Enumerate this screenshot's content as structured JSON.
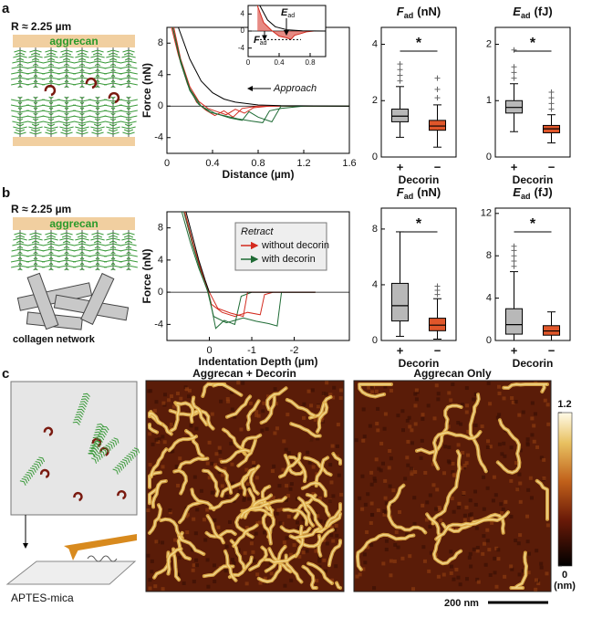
{
  "panel_labels": [
    "a",
    "b",
    "c"
  ],
  "schematic_a": {
    "radius": "R ≈ 2.25 µm",
    "top": "aggrecan"
  },
  "schematic_b": {
    "radius": "R ≈ 2.25 µm",
    "top": "aggrecan",
    "bottom": "collagen network"
  },
  "schematic_c": {
    "substrate": "APTES-mica"
  },
  "images": [
    {
      "title": "Aggrecan + Decorin"
    },
    {
      "title": "Aggrecan Only"
    }
  ],
  "colorbar": {
    "lim": [
      0,
      1.2
    ],
    "ticks": [
      0,
      1.2
    ],
    "unit": "(nm)"
  },
  "scale_bar": "200 nm",
  "chart_data": [
    {
      "type": "line",
      "xlabel": "Distance (µm)",
      "ylabel": "Force (nN)",
      "xlim": [
        0,
        1.6
      ],
      "xticks": [
        0,
        0.4,
        0.8,
        1.2,
        1.6
      ],
      "ylim": [
        -6,
        10
      ],
      "yticks": [
        -4,
        0,
        4,
        8
      ],
      "annotation": "Approach",
      "series": [
        {
          "color": "#d42a1e",
          "x": [
            0.06,
            0.12,
            0.2,
            0.28,
            0.36,
            0.44,
            0.52,
            0.6,
            0.68,
            0.76,
            0.9,
            1.6
          ],
          "values": [
            10,
            6,
            2.5,
            0.6,
            -0.3,
            -0.7,
            -1.1,
            -0.4,
            -0.9,
            -0.2,
            0,
            0
          ]
        },
        {
          "color": "#d42a1e",
          "x": [
            0.04,
            0.1,
            0.18,
            0.26,
            0.34,
            0.42,
            0.5,
            0.58,
            0.66,
            0.8,
            1.6
          ],
          "values": [
            10,
            6.5,
            2.8,
            0.5,
            -0.5,
            -1.2,
            -0.6,
            -1.4,
            -0.3,
            0,
            0
          ]
        },
        {
          "color": "#1f6b35",
          "x": [
            0.05,
            0.12,
            0.2,
            0.28,
            0.38,
            0.5,
            0.62,
            0.74,
            0.84,
            0.9,
            1.0,
            1.2,
            1.6
          ],
          "values": [
            10,
            5.5,
            2,
            0.2,
            -0.8,
            -1.2,
            -1.6,
            -1.9,
            -2.1,
            -0.6,
            -0.3,
            0,
            0
          ]
        },
        {
          "color": "#1f6b35",
          "x": [
            0.05,
            0.12,
            0.2,
            0.3,
            0.42,
            0.55,
            0.66,
            0.72,
            0.8,
            0.92,
            1.0,
            1.6
          ],
          "values": [
            10,
            5.8,
            2.2,
            0,
            -0.9,
            -1.5,
            -1.8,
            -0.7,
            -1.4,
            -2.0,
            0,
            0
          ]
        },
        {
          "color": "#000000",
          "x": [
            0.1,
            0.15,
            0.2,
            0.3,
            0.4,
            0.5,
            0.6,
            0.8,
            1.0,
            1.6
          ],
          "values": [
            10,
            8,
            6,
            3.2,
            1.7,
            0.9,
            0.5,
            0.15,
            0.05,
            0
          ]
        }
      ]
    },
    {
      "type": "line",
      "xlim": [
        0,
        1.0
      ],
      "xticks": [
        0,
        0.4,
        0.8
      ],
      "ylim": [
        -6,
        6
      ],
      "yticks": [
        -4,
        0,
        4
      ],
      "annotations": {
        "E": "E",
        "E_sub": "ad",
        "F": "F",
        "F_sub": "ad"
      },
      "series": [
        {
          "color": "#d42a1e",
          "area": true,
          "x": [
            0.12,
            0.2,
            0.3,
            0.4,
            0.5,
            0.55,
            0.6,
            0.68,
            0.75,
            0.85
          ],
          "values": [
            6,
            2,
            0.2,
            -1.2,
            -1.6,
            -2,
            -1,
            -0.6,
            -0.2,
            0
          ]
        },
        {
          "color": "#000000",
          "x": [
            0.15,
            0.25,
            0.35,
            0.5,
            0.7,
            1.0
          ],
          "values": [
            6,
            2.6,
            1,
            0.3,
            0.05,
            0
          ]
        }
      ]
    },
    {
      "type": "box",
      "title": "F",
      "title_sub": "ad",
      "title_unit": "(nN)",
      "xlabel": "Decorin",
      "categories": [
        "+",
        "−"
      ],
      "annotation": "*",
      "ylim": [
        0,
        4.6
      ],
      "yticks": [
        0,
        2,
        4
      ],
      "boxes": [
        {
          "color": "#b8b8b8",
          "whisker_low": 0.7,
          "q1": 1.25,
          "median": 1.45,
          "q3": 1.7,
          "whisker_high": 2.5,
          "outliers": [
            2.7,
            2.9,
            3.1,
            3.3
          ]
        },
        {
          "color": "#e0562a",
          "whisker_low": 0.35,
          "q1": 0.95,
          "median": 1.1,
          "q3": 1.3,
          "whisker_high": 1.85,
          "outliers": [
            2.1,
            2.4,
            2.8
          ]
        }
      ]
    },
    {
      "type": "box",
      "title": "E",
      "title_sub": "ad",
      "title_unit": "(fJ)",
      "xlabel": "Decorin",
      "categories": [
        "+",
        "−"
      ],
      "annotation": "*",
      "ylim": [
        0,
        2.3
      ],
      "yticks": [
        0,
        1,
        2
      ],
      "boxes": [
        {
          "color": "#b8b8b8",
          "whisker_low": 0.45,
          "q1": 0.78,
          "median": 0.88,
          "q3": 1.0,
          "whisker_high": 1.3,
          "outliers": [
            1.4,
            1.5,
            1.6,
            1.9
          ]
        },
        {
          "color": "#e0562a",
          "whisker_low": 0.25,
          "q1": 0.43,
          "median": 0.5,
          "q3": 0.56,
          "whisker_high": 0.75,
          "outliers": [
            0.85,
            0.95,
            1.05,
            1.15
          ]
        }
      ]
    },
    {
      "type": "line",
      "xlabel": "Indentation Depth (µm)",
      "ylabel": "Force (nN)",
      "xlim": [
        1,
        -3.3
      ],
      "xticks": [
        0,
        -1,
        -2
      ],
      "ylim": [
        -6,
        10
      ],
      "yticks": [
        -4,
        0,
        4,
        8
      ],
      "legend": {
        "title": "Retract"
      },
      "series": [
        {
          "name": "without decorin",
          "color": "#d42a1e",
          "x": [
            0.6,
            0.4,
            0.2,
            0.05,
            -0.05,
            -0.3,
            -0.6,
            -0.9,
            -1.2,
            -1.3,
            -1.5,
            -2.5
          ],
          "values": [
            10,
            6,
            3,
            0.5,
            -1.5,
            -2.5,
            -3,
            -2.5,
            -2.8,
            -0.3,
            0,
            0
          ]
        },
        {
          "name": "with decorin",
          "color": "#1f6b35",
          "x": [
            0.65,
            0.45,
            0.25,
            0.05,
            -0.1,
            -0.4,
            -0.8,
            -1.1,
            -1.4,
            -1.6,
            -1.7,
            -2.5
          ],
          "values": [
            10,
            6.2,
            3,
            0.3,
            -3,
            -3.8,
            -3.2,
            -3.6,
            -3.9,
            -4.2,
            0,
            0
          ]
        },
        {
          "color": "#1f6b35",
          "x": [
            0.6,
            0.4,
            0.2,
            0,
            -0.15,
            -0.35,
            -0.6,
            -0.75,
            -1.0,
            -2.5
          ],
          "values": [
            10,
            6,
            2.5,
            -0.5,
            -4.5,
            -3.5,
            -4,
            -0.5,
            0,
            0
          ]
        },
        {
          "color": "#d42a1e",
          "x": [
            0.58,
            0.38,
            0.18,
            0,
            -0.2,
            -0.5,
            -0.8,
            -0.9,
            -2.5
          ],
          "values": [
            10,
            6,
            2.5,
            0,
            -2,
            -2.6,
            -3,
            0,
            0
          ]
        },
        {
          "color": "#000000",
          "x": [
            0.55,
            0.4,
            0.25,
            0.1,
            0,
            -0.3,
            -2.5
          ],
          "values": [
            10,
            7,
            4,
            1.5,
            0,
            0,
            0
          ]
        }
      ]
    },
    {
      "type": "box",
      "title": "F",
      "title_sub": "ad",
      "title_unit": "(nN)",
      "xlabel": "Decorin",
      "categories": [
        "+",
        "−"
      ],
      "annotation": "*",
      "ylim": [
        0,
        9.5
      ],
      "yticks": [
        0,
        4,
        8
      ],
      "boxes": [
        {
          "color": "#b8b8b8",
          "whisker_low": 0.3,
          "q1": 1.4,
          "median": 2.5,
          "q3": 4.1,
          "whisker_high": 7.8,
          "outliers": []
        },
        {
          "color": "#e0562a",
          "whisker_low": 0.1,
          "q1": 0.7,
          "median": 1.1,
          "q3": 1.6,
          "whisker_high": 3.0,
          "outliers": [
            3.3,
            3.6,
            3.9
          ]
        }
      ]
    },
    {
      "type": "box",
      "title": "E",
      "title_sub": "ad",
      "title_unit": "(fJ)",
      "xlabel": "Decorin",
      "categories": [
        "+",
        "−"
      ],
      "annotation": "*",
      "ylim": [
        0,
        12.5
      ],
      "yticks": [
        0,
        4,
        8,
        12
      ],
      "boxes": [
        {
          "color": "#b8b8b8",
          "whisker_low": 0,
          "q1": 0.6,
          "median": 1.5,
          "q3": 3.0,
          "whisker_high": 6.5,
          "outliers": [
            7,
            7.5,
            8,
            8.5,
            8.9
          ]
        },
        {
          "color": "#e0562a",
          "whisker_low": 0,
          "q1": 0.5,
          "median": 0.9,
          "q3": 1.4,
          "whisker_high": 2.7,
          "outliers": []
        }
      ]
    }
  ]
}
